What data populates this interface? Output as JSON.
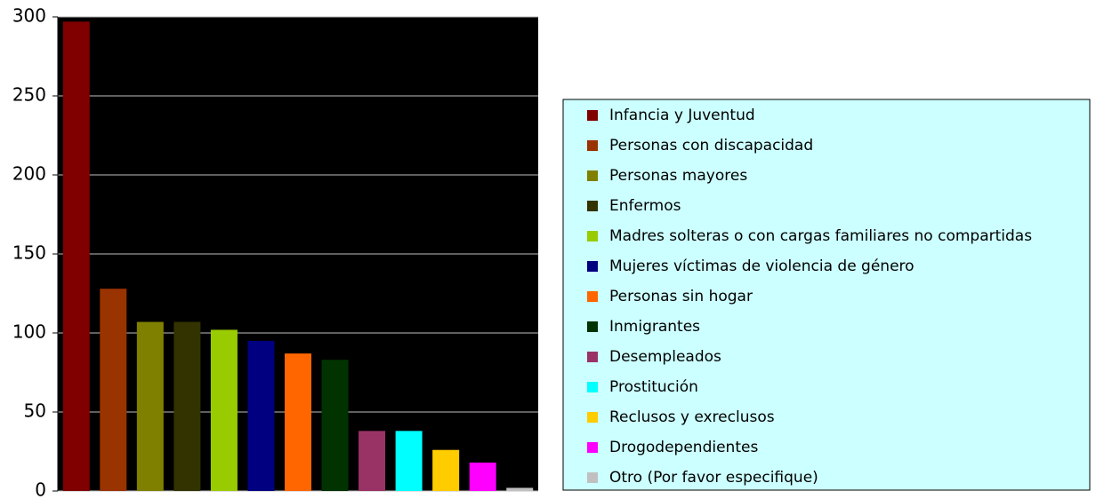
{
  "chart_data": {
    "type": "bar",
    "categories": [
      "Infancia y Juventud",
      "Personas con discapacidad",
      "Personas mayores",
      "Enfermos",
      "Madres solteras o con cargas familiares no compartidas",
      "Mujeres víctimas de violencia de género",
      "Personas sin hogar",
      "Inmigrantes",
      "Desempleados",
      "Prostitución",
      "Reclusos y exreclusos",
      "Drogodependientes",
      "Otro (Por favor especifique)"
    ],
    "values": [
      297,
      128,
      107,
      107,
      102,
      95,
      87,
      83,
      38,
      38,
      26,
      18,
      2
    ],
    "colors": [
      "#800000",
      "#993300",
      "#808000",
      "#333300",
      "#99cc00",
      "#000080",
      "#ff6600",
      "#003300",
      "#993366",
      "#00ffff",
      "#ffcc00",
      "#ff00ff",
      "#c0c0c0"
    ],
    "ylim": [
      0,
      300
    ],
    "yticks": [
      0,
      50,
      100,
      150,
      200,
      250,
      300
    ],
    "grid": true,
    "legend": "right"
  }
}
